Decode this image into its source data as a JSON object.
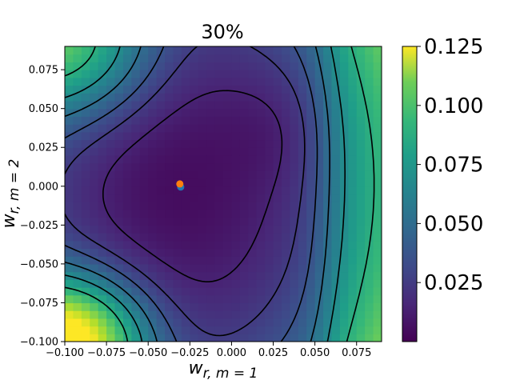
{
  "chart_data": {
    "type": "heatmap",
    "title": "30%",
    "xlabel": "w_{r,m=1}",
    "ylabel": "w_{r,m=2}",
    "xlim": [
      -0.1,
      0.09
    ],
    "ylim": [
      -0.1,
      0.09
    ],
    "x_ticks": [
      "−0.100",
      "−0.075",
      "−0.050",
      "−0.025",
      "0.000",
      "0.025",
      "0.050",
      "0.075"
    ],
    "x_tick_values": [
      -0.1,
      -0.075,
      -0.05,
      -0.025,
      0.0,
      0.025,
      0.05,
      0.075
    ],
    "y_ticks": [
      "−0.100",
      "−0.075",
      "−0.050",
      "−0.025",
      "0.000",
      "0.025",
      "0.050",
      "0.075"
    ],
    "y_tick_values": [
      -0.1,
      -0.075,
      -0.05,
      -0.025,
      0.0,
      0.025,
      0.05,
      0.075
    ],
    "colorbar": {
      "colormap": "viridis",
      "range": [
        0.0,
        0.125
      ],
      "ticks": [
        "0.025",
        "0.050",
        "0.075",
        "0.100",
        "0.125"
      ],
      "tick_values": [
        0.025,
        0.05,
        0.075,
        0.1,
        0.125
      ]
    },
    "grid": false,
    "points": [
      {
        "x": -0.0305,
        "y": -0.0005,
        "color": "#1f77b4"
      },
      {
        "x": -0.031,
        "y": 0.0015,
        "color": "#ff7f0e"
      }
    ],
    "surface_model": {
      "min_at": [
        -0.03,
        0.0
      ],
      "min_value": 0.004,
      "description_values": {
        "ridge_x": 0.06,
        "bottom_left_max": 0.105,
        "top_left_max": 0.09
      }
    },
    "contour_levels": [
      0.012,
      0.022,
      0.032,
      0.045,
      0.06,
      0.078
    ]
  }
}
